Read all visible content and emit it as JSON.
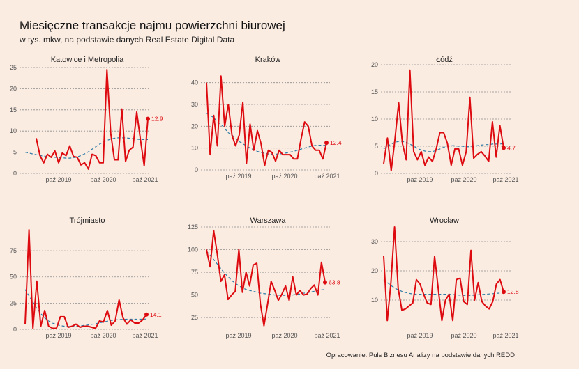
{
  "title": "Miesięczne transakcje najmu powierzchni biurowej",
  "subtitle": "w tys. mkw, na podstawie danych Real Estate Digital Data",
  "source": "Opracowanie: Puls Biznesu Analizy na podstawie danych REDD",
  "colors": {
    "series": "#dd0b10",
    "trend": "#2d7aa5",
    "background": "#fbece2"
  },
  "chart_data": [
    {
      "type": "line",
      "title": "Katowice i Metropolia",
      "x_ticks": [
        "paź 2019",
        "paź 2020",
        "paź 2021"
      ],
      "ylim": [
        0,
        25
      ],
      "y_ticks": [
        0,
        5,
        10,
        15,
        20,
        25
      ],
      "last_label": "12.9",
      "series": [
        {
          "name": "",
          "values": [
            null,
            null,
            null,
            8.3,
            4.2,
            2.5,
            4.5,
            3.8,
            5.3,
            2.5,
            4.8,
            4.2,
            6.5,
            4.0,
            3.8,
            2.0,
            2.5,
            1.0,
            4.5,
            4.2,
            2.5,
            2.5,
            24.5,
            9.5,
            3.2,
            3.2,
            15.2,
            2.8,
            5.5,
            6.2,
            14.5,
            8.0,
            1.8,
            12.9
          ]
        },
        {
          "name": "",
          "values": [
            5.0,
            4.8,
            4.6,
            4.4,
            4.2,
            4.1,
            4.0,
            3.9,
            3.8,
            3.7,
            3.7,
            3.6,
            3.6,
            3.7,
            3.9,
            4.2,
            4.6,
            5.1,
            5.7,
            6.3,
            6.9,
            7.4,
            7.8,
            8.1,
            8.3,
            8.4,
            8.4,
            8.4,
            8.3,
            8.2,
            8.1,
            8.0,
            8.0,
            8.0
          ]
        }
      ]
    },
    {
      "type": "line",
      "title": "Kraków",
      "x_ticks": [
        "paź 2019",
        "paź 2020",
        "paź 2021"
      ],
      "ylim": [
        0,
        45
      ],
      "y_ticks": [
        0,
        10,
        20,
        30,
        40
      ],
      "last_label": "12.4",
      "series": [
        {
          "name": "",
          "values": [
            40,
            7,
            25,
            11,
            43,
            20,
            30,
            16,
            11,
            16,
            31,
            3,
            21,
            9,
            18,
            12,
            2,
            9,
            8,
            4,
            9,
            7,
            7,
            7,
            5,
            5,
            14,
            22,
            20,
            11,
            9,
            9,
            5,
            12.4
          ]
        },
        {
          "name": "",
          "values": [
            26,
            25,
            24,
            22,
            21,
            19,
            17,
            16,
            14.5,
            13,
            12,
            11,
            10,
            9.2,
            8.5,
            8,
            7.6,
            7.3,
            7.2,
            7.2,
            7.3,
            7.5,
            7.8,
            8.1,
            8.5,
            9,
            9.5,
            10,
            10.5,
            10.9,
            11.2,
            11.3,
            11.3,
            11.2
          ]
        }
      ]
    },
    {
      "type": "line",
      "title": "Łódź",
      "x_ticks": [
        "paź 2019",
        "paź 2020",
        "paź 2021"
      ],
      "ylim": [
        0,
        20
      ],
      "y_ticks": [
        0,
        5,
        10,
        15,
        20
      ],
      "last_label": "4.7",
      "series": [
        {
          "name": "",
          "values": [
            1.8,
            6.5,
            0.5,
            6.2,
            13.0,
            5.5,
            2.5,
            19.0,
            4.0,
            2.5,
            4.0,
            1.5,
            3.0,
            2.2,
            4.5,
            7.5,
            7.5,
            5.5,
            1.5,
            4.5,
            4.5,
            1.5,
            4.0,
            14.0,
            2.8,
            3.5,
            4.0,
            3.2,
            2.2,
            9.5,
            3.0,
            8.8,
            4.7
          ]
        },
        {
          "name": "",
          "values": [
            4.5,
            5.0,
            5.4,
            5.7,
            5.9,
            5.9,
            5.7,
            5.4,
            5.0,
            4.6,
            4.3,
            4.1,
            4.0,
            4.0,
            4.2,
            4.5,
            4.8,
            5.0,
            5.1,
            5.1,
            5.0,
            5.0,
            4.9,
            4.9,
            5.0,
            5.1,
            5.2,
            5.3,
            5.3,
            5.4,
            5.4,
            5.4,
            5.5
          ]
        }
      ]
    },
    {
      "type": "line",
      "title": "Trójmiasto",
      "x_ticks": [
        "paź 2019",
        "paź 2020",
        "paź 2021"
      ],
      "ylim": [
        0,
        95
      ],
      "y_ticks": [
        0,
        25,
        50,
        75
      ],
      "last_label": "14.1",
      "series": [
        {
          "name": "",
          "values": [
            5,
            95,
            1,
            46,
            3,
            18,
            3,
            1,
            1,
            12,
            12,
            2,
            3,
            5,
            2,
            3,
            3,
            2,
            1,
            8,
            7,
            18,
            4,
            8,
            28,
            11,
            5,
            9,
            6,
            6,
            9,
            14.1
          ]
        },
        {
          "name": "",
          "values": [
            38,
            32,
            26,
            20,
            15,
            11,
            8,
            6,
            4.5,
            3.5,
            3,
            2.8,
            2.8,
            3,
            3.3,
            3.7,
            4.2,
            4.8,
            5.4,
            6.2,
            7,
            7.8,
            8.5,
            9,
            9.3,
            9.5,
            9.6,
            9.6,
            9.6,
            9.6,
            9.7,
            9.8
          ]
        }
      ]
    },
    {
      "type": "line",
      "title": "Warszawa",
      "x_ticks": [
        "paź 2019",
        "paź 2020",
        "paź 2021"
      ],
      "ylim": [
        12,
        125
      ],
      "y_ticks": [
        25,
        50,
        75,
        100,
        125
      ],
      "last_label": "63.8",
      "series": [
        {
          "name": "",
          "values": [
            100,
            81,
            121,
            95,
            65,
            72,
            45,
            50,
            54,
            100,
            53,
            75,
            60,
            83,
            85,
            40,
            16,
            40,
            65,
            55,
            44,
            51,
            60,
            44,
            70,
            50,
            55,
            50,
            51,
            57,
            61,
            50,
            86,
            63.8
          ]
        },
        {
          "name": "",
          "values": [
            98,
            94,
            89,
            84,
            79,
            74,
            70,
            66,
            63,
            60,
            58,
            56,
            55,
            54,
            53,
            52,
            51.5,
            51,
            50.5,
            50,
            49.8,
            49.6,
            49.6,
            49.8,
            50,
            50.5,
            51,
            51.8,
            52.5,
            53.2,
            54,
            54.8,
            55.5,
            56
          ]
        }
      ]
    },
    {
      "type": "line",
      "title": "Wrocław",
      "x_ticks": [
        "paź 2019",
        "paź 2020",
        "paź 2021"
      ],
      "ylim": [
        0,
        35
      ],
      "y_ticks": [
        10,
        20,
        30
      ],
      "last_label": "12.8",
      "series": [
        {
          "name": "",
          "values": [
            25,
            3,
            16,
            35,
            14,
            6.5,
            7,
            8,
            9,
            17,
            15.5,
            12,
            9,
            8.5,
            25,
            14,
            3,
            10,
            12,
            3,
            17,
            17.5,
            9.5,
            8.5,
            27,
            10,
            16,
            9.5,
            8,
            7,
            9.5,
            15.5,
            17,
            12.8
          ]
        },
        {
          "name": "",
          "values": [
            17,
            16,
            15,
            14.2,
            13.5,
            13,
            12.6,
            12.3,
            12.1,
            12,
            12,
            12,
            12,
            12,
            12,
            12,
            12,
            12,
            12,
            11.9,
            11.8,
            11.7,
            11.6,
            11.6,
            11.6,
            11.7,
            11.8,
            11.9,
            12,
            12.1,
            12.2,
            12.3,
            12.4,
            12.5
          ]
        }
      ]
    }
  ]
}
